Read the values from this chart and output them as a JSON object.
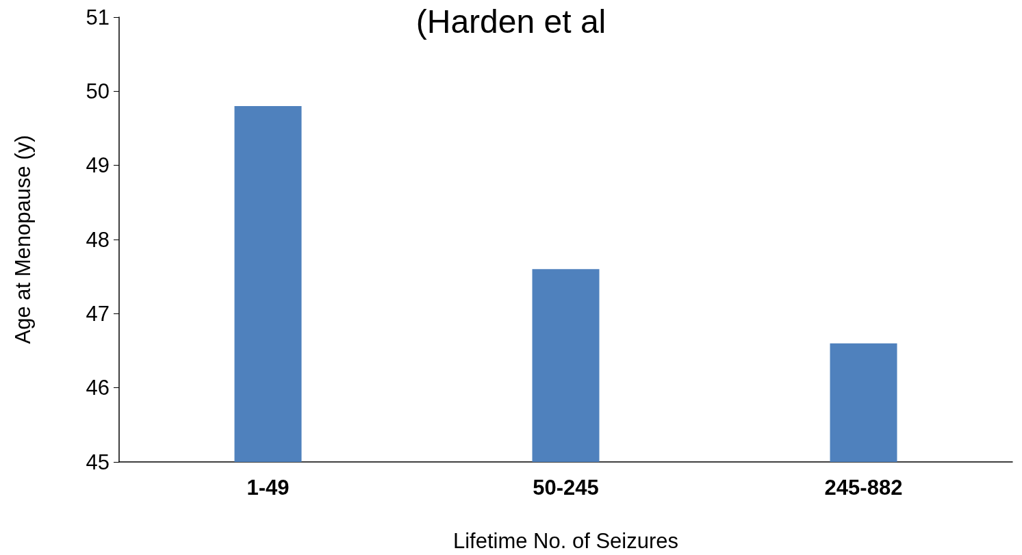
{
  "chart_data": {
    "type": "bar",
    "title": "(Harden et al",
    "xlabel": "Lifetime No. of Seizures",
    "ylabel": "Age at Menopause (y)",
    "categories": [
      "1-49",
      "50-245",
      "245-882"
    ],
    "values": [
      49.8,
      47.6,
      46.6
    ],
    "color": "#4f81bd",
    "ylim": [
      45,
      51
    ],
    "yticks": [
      45,
      46,
      47,
      48,
      49,
      50,
      51
    ],
    "grid": false
  }
}
